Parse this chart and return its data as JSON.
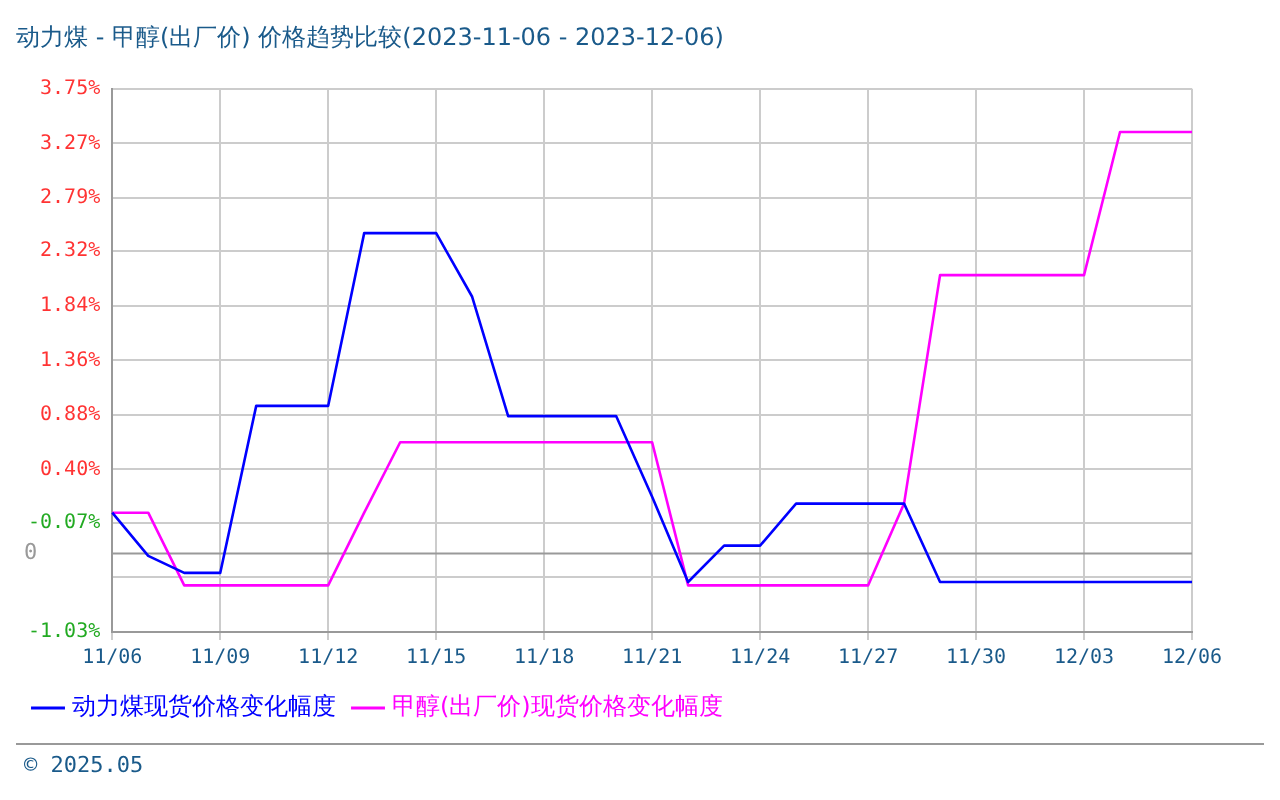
{
  "chart_data": {
    "type": "line",
    "title": "动力煤 - 甲醇(出厂价) 价格趋势比较(2023-11-06 - 2023-12-06)",
    "categories": [
      "11/06",
      null,
      null,
      "11/09",
      null,
      null,
      "11/12",
      null,
      null,
      "11/15",
      null,
      null,
      "11/18",
      null,
      null,
      "11/21",
      null,
      null,
      "11/24",
      null,
      null,
      "11/27",
      null,
      null,
      "11/30",
      null,
      null,
      "12/03",
      null,
      null,
      "12/06"
    ],
    "series": [
      {
        "name": "动力煤现货价格变化幅度",
        "color": "#0000ff",
        "values": [
          0.02,
          -0.36,
          -0.51,
          -0.51,
          0.96,
          0.96,
          0.96,
          2.48,
          2.48,
          2.48,
          1.92,
          0.87,
          0.87,
          0.87,
          0.87,
          0.16,
          -0.59,
          -0.27,
          -0.27,
          0.1,
          0.1,
          0.1,
          0.1,
          -0.59,
          -0.59,
          -0.59,
          -0.59,
          -0.59,
          -0.59,
          -0.59,
          -0.59
        ]
      },
      {
        "name": "甲醇(出厂价)现货价格变化幅度",
        "color": "#ff00ff",
        "values": [
          0.02,
          0.02,
          -0.62,
          -0.62,
          -0.62,
          -0.62,
          -0.62,
          0.02,
          0.64,
          0.64,
          0.64,
          0.64,
          0.64,
          0.64,
          0.64,
          0.64,
          -0.62,
          -0.62,
          -0.62,
          -0.62,
          -0.62,
          -0.62,
          0.1,
          2.11,
          2.11,
          2.11,
          2.11,
          2.11,
          3.37,
          3.37,
          3.37
        ]
      }
    ],
    "ylim": [
      -1.03,
      3.75
    ],
    "yticks": [
      {
        "value": -1.03,
        "label": "-1.03%"
      },
      {
        "value": -0.55,
        "label": null
      },
      {
        "value": -0.07,
        "label": "-0.07%"
      },
      {
        "value": 0.4,
        "label": "0.40%"
      },
      {
        "value": 0.88,
        "label": "0.88%"
      },
      {
        "value": 1.36,
        "label": "1.36%"
      },
      {
        "value": 1.84,
        "label": "1.84%"
      },
      {
        "value": 2.32,
        "label": "2.32%"
      },
      {
        "value": 2.79,
        "label": "2.79%"
      },
      {
        "value": 3.27,
        "label": "3.27%"
      },
      {
        "value": 3.75,
        "label": "3.75%"
      }
    ],
    "ref_lines": [
      {
        "axis": "y",
        "value": -0.34,
        "label": "0",
        "color": "#999999"
      }
    ],
    "annotations": [
      "© 2025.05"
    ],
    "grid": true,
    "legend": "bottom",
    "marker": "none",
    "line_style": "solid"
  }
}
